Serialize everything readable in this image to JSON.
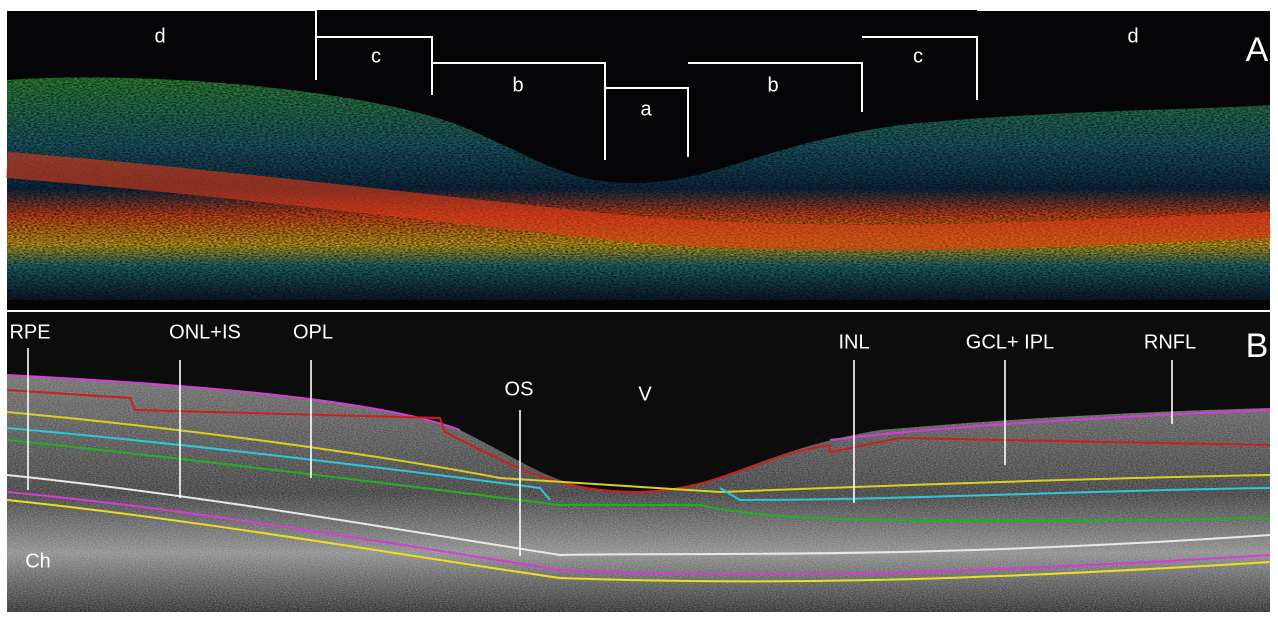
{
  "panel_a": {
    "label": "A",
    "regions": [
      "d",
      "c",
      "b",
      "a",
      "b",
      "c",
      "d"
    ]
  },
  "panel_b": {
    "label": "B",
    "layers": [
      "RPE",
      "ONL+IS",
      "OPL",
      "OS",
      "V",
      "INL",
      "GCL+ IPL",
      "RNFL",
      "Ch"
    ]
  }
}
